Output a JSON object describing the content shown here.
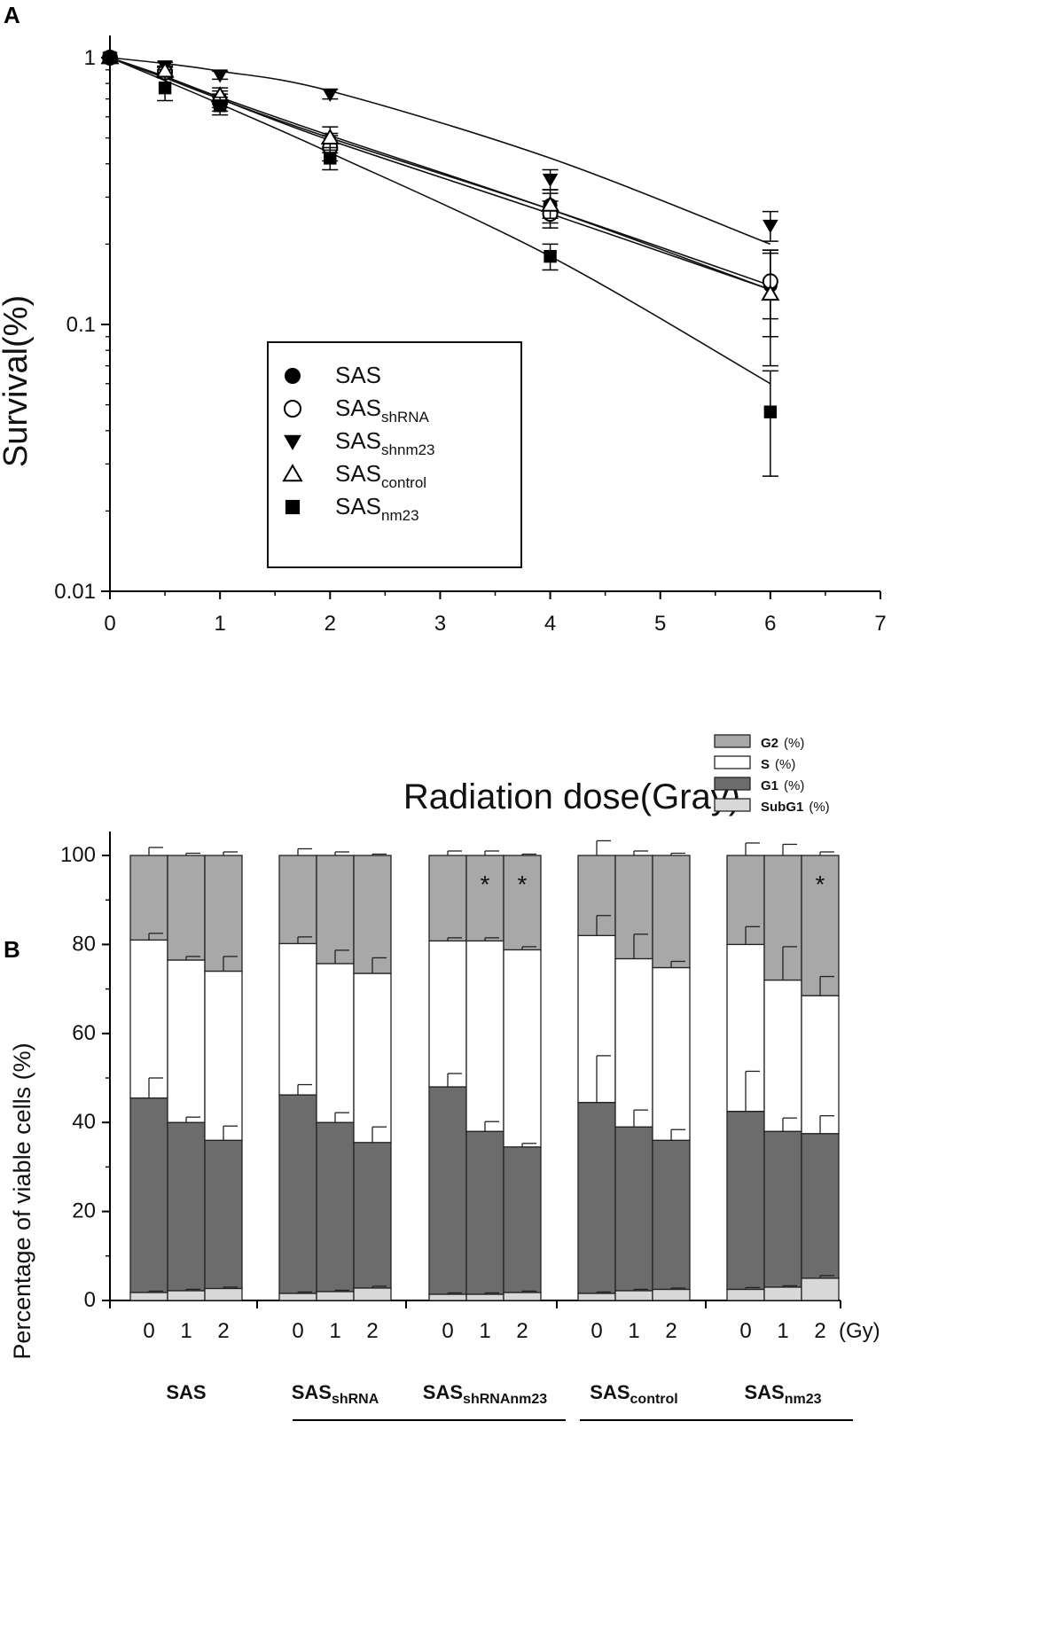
{
  "chart_data": [
    {
      "panel": "A",
      "type": "scatter",
      "xlabel": "Radiation dose(Gray)",
      "ylabel": "Survival(%)",
      "xlim": [
        0,
        7
      ],
      "ylim": [
        0.01,
        1
      ],
      "yscale": "log",
      "xticks": [
        "0",
        "1",
        "2",
        "3",
        "4",
        "5",
        "6",
        "7"
      ],
      "yticks": [
        "1",
        "0.1",
        "0.01"
      ],
      "legend_placement": "center-left",
      "series": [
        {
          "name": "SAS",
          "sub": "",
          "marker": "filled-circle",
          "x": [
            0,
            0.5,
            1,
            2,
            4,
            6
          ],
          "y": [
            1.0,
            0.88,
            0.7,
            0.48,
            0.28,
            0.14
          ],
          "err": [
            0,
            0.04,
            0.05,
            0.04,
            0.04,
            0.05
          ],
          "fit": [
            1.0,
            0.84,
            0.7,
            0.5,
            0.27,
            0.14
          ]
        },
        {
          "name": "SAS",
          "sub": "shRNA",
          "marker": "open-circle",
          "x": [
            0,
            0.5,
            1,
            2,
            4,
            6
          ],
          "y": [
            1.0,
            0.88,
            0.68,
            0.46,
            0.26,
            0.145
          ],
          "err": [
            0,
            0.04,
            0.05,
            0.05,
            0.03,
            0.04
          ],
          "fit": [
            1.0,
            0.84,
            0.7,
            0.49,
            0.26,
            0.135
          ]
        },
        {
          "name": "SAS",
          "sub": "shnm23",
          "marker": "filled-triangle-down",
          "x": [
            0,
            0.5,
            1,
            2,
            4,
            6
          ],
          "y": [
            1.0,
            0.93,
            0.86,
            0.73,
            0.35,
            0.235
          ],
          "err": [
            0,
            0.03,
            0.03,
            0.03,
            0.03,
            0.03
          ],
          "fit": [
            1.0,
            0.95,
            0.89,
            0.75,
            0.42,
            0.2
          ]
        },
        {
          "name": "SAS",
          "sub": "control",
          "marker": "open-triangle-up",
          "x": [
            0,
            0.5,
            1,
            2,
            4,
            6
          ],
          "y": [
            1.0,
            0.89,
            0.72,
            0.5,
            0.28,
            0.13
          ],
          "err": [
            0,
            0.04,
            0.05,
            0.05,
            0.03,
            0.06
          ],
          "fit": [
            1.0,
            0.85,
            0.71,
            0.51,
            0.27,
            0.135
          ]
        },
        {
          "name": "SAS",
          "sub": "nm23",
          "marker": "filled-square",
          "x": [
            0,
            0.5,
            1,
            2,
            4,
            6
          ],
          "y": [
            1.0,
            0.77,
            0.66,
            0.42,
            0.18,
            0.047
          ],
          "err": [
            0,
            0.08,
            0.05,
            0.04,
            0.02,
            0.02
          ],
          "fit": [
            1.0,
            0.82,
            0.67,
            0.44,
            0.18,
            0.06
          ]
        }
      ]
    },
    {
      "panel": "B",
      "type": "bar",
      "stacked": true,
      "ylabel": "Percentage of viable cells (%)",
      "ylim": [
        0,
        100
      ],
      "yticks": [
        "0",
        "20",
        "40",
        "60",
        "80",
        "100"
      ],
      "unit_label": "(Gy)",
      "doses": [
        "0",
        "1",
        "2"
      ],
      "legend_placement": "top-right",
      "phases": [
        {
          "key": "G2",
          "label": "G2",
          "pct": "(%)",
          "color": "#a8a8a8"
        },
        {
          "key": "S",
          "label": "S",
          "pct": "(%)",
          "color": "#ffffff"
        },
        {
          "key": "G1",
          "label": "G1",
          "pct": "(%)",
          "color": "#6c6c6c"
        },
        {
          "key": "SubG1",
          "label": "SubG1",
          "pct": "(%)",
          "color": "#d8d8d8"
        }
      ],
      "groups": [
        {
          "name": "SAS",
          "sub": "",
          "underline": false,
          "bars": [
            {
              "subg1": 1.8,
              "g1": 45.5,
              "s": 81.0,
              "err": [
                0.3,
                4.5,
                1.5,
                1.8
              ]
            },
            {
              "subg1": 2.2,
              "g1": 40.0,
              "s": 76.5,
              "err": [
                0.3,
                1.2,
                0.8,
                0.5
              ]
            },
            {
              "subg1": 2.7,
              "g1": 36.0,
              "s": 74.0,
              "err": [
                0.3,
                3.2,
                3.3,
                0.8
              ]
            }
          ]
        },
        {
          "name": "SAS",
          "sub": "shRNA",
          "underline": true,
          "bars": [
            {
              "subg1": 1.6,
              "g1": 46.2,
              "s": 80.2,
              "err": [
                0.3,
                2.3,
                1.5,
                1.5
              ]
            },
            {
              "subg1": 2.0,
              "g1": 40.0,
              "s": 75.7,
              "err": [
                0.3,
                2.2,
                3.0,
                0.8
              ]
            },
            {
              "subg1": 2.8,
              "g1": 35.5,
              "s": 73.5,
              "err": [
                0.4,
                3.5,
                3.5,
                0.3
              ]
            }
          ]
        },
        {
          "name": "SAS",
          "sub": "shRNAnm23",
          "underline": true,
          "bars": [
            {
              "subg1": 1.4,
              "g1": 48.0,
              "s": 80.8,
              "err": [
                0.3,
                3.0,
                0.7,
                1.0
              ]
            },
            {
              "subg1": 1.4,
              "g1": 38.0,
              "s": 80.8,
              "err": [
                0.3,
                2.2,
                0.7,
                1.0
              ],
              "star": true
            },
            {
              "subg1": 1.8,
              "g1": 34.5,
              "s": 78.8,
              "err": [
                0.3,
                0.8,
                0.7,
                0.3
              ],
              "star": true
            }
          ]
        },
        {
          "name": "SAS",
          "sub": "control",
          "underline": true,
          "bars": [
            {
              "subg1": 1.6,
              "g1": 44.5,
              "s": 82.0,
              "err": [
                0.3,
                10.5,
                4.5,
                3.3
              ]
            },
            {
              "subg1": 2.2,
              "g1": 39.0,
              "s": 76.8,
              "err": [
                0.3,
                3.8,
                5.5,
                1.0
              ]
            },
            {
              "subg1": 2.5,
              "g1": 36.0,
              "s": 74.8,
              "err": [
                0.3,
                2.4,
                1.4,
                0.5
              ]
            }
          ]
        },
        {
          "name": "SAS",
          "sub": "nm23",
          "underline": true,
          "bars": [
            {
              "subg1": 2.5,
              "g1": 42.5,
              "s": 80.0,
              "err": [
                0.4,
                9.0,
                4.0,
                2.8
              ]
            },
            {
              "subg1": 3.0,
              "g1": 38.0,
              "s": 72.0,
              "err": [
                0.3,
                3.0,
                7.5,
                2.5
              ]
            },
            {
              "subg1": 5.0,
              "g1": 37.5,
              "s": 68.5,
              "err": [
                0.6,
                4.0,
                4.3,
                0.8
              ],
              "star": true
            }
          ]
        }
      ]
    }
  ]
}
